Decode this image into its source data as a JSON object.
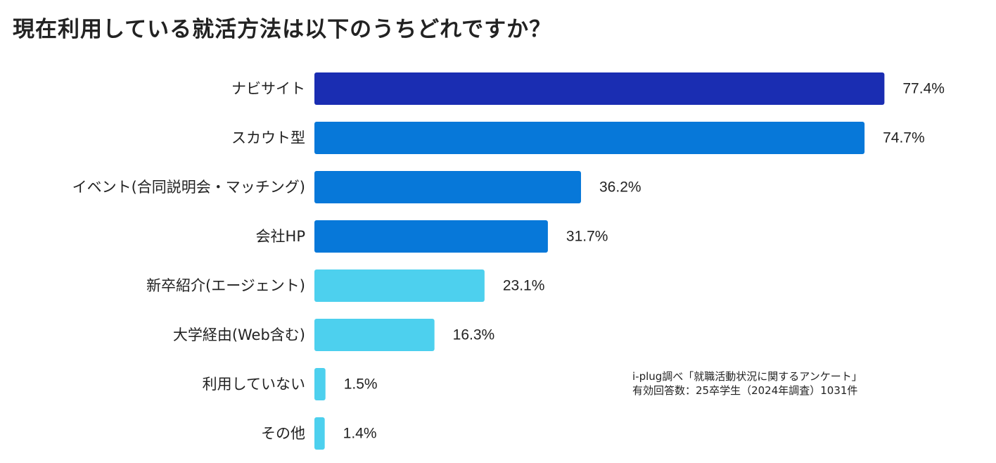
{
  "chart_data": {
    "type": "bar",
    "orientation": "horizontal",
    "title": "現在利用している就活方法は以下のうちどれですか？",
    "categories": [
      "ナビサイト",
      "スカウト型",
      "イベント(合同説明会・マッチング)",
      "会社HP",
      "新卒紹介(エージェント)",
      "大学経由(Web含む)",
      "利用していない",
      "その他"
    ],
    "values": [
      77.4,
      74.7,
      36.2,
      31.7,
      23.1,
      16.3,
      1.5,
      1.4
    ],
    "value_labels": [
      "77.4%",
      "74.7%",
      "36.2%",
      "31.7%",
      "23.1%",
      "16.3%",
      "1.5%",
      "1.4%"
    ],
    "colors": [
      "#1a2db2",
      "#0778d9",
      "#0778d9",
      "#0778d9",
      "#4dd0ee",
      "#4dd0ee",
      "#4dd0ee",
      "#4dd0ee"
    ],
    "unit": "%",
    "xlabel": "",
    "ylabel": "",
    "xlim": [
      0,
      100
    ],
    "grid": false,
    "legend": "none"
  },
  "source": {
    "line1": "i-plug調べ「就職活動状況に関するアンケート」",
    "line2": "有効回答数：25卒学生（2024年調査）1031件"
  }
}
